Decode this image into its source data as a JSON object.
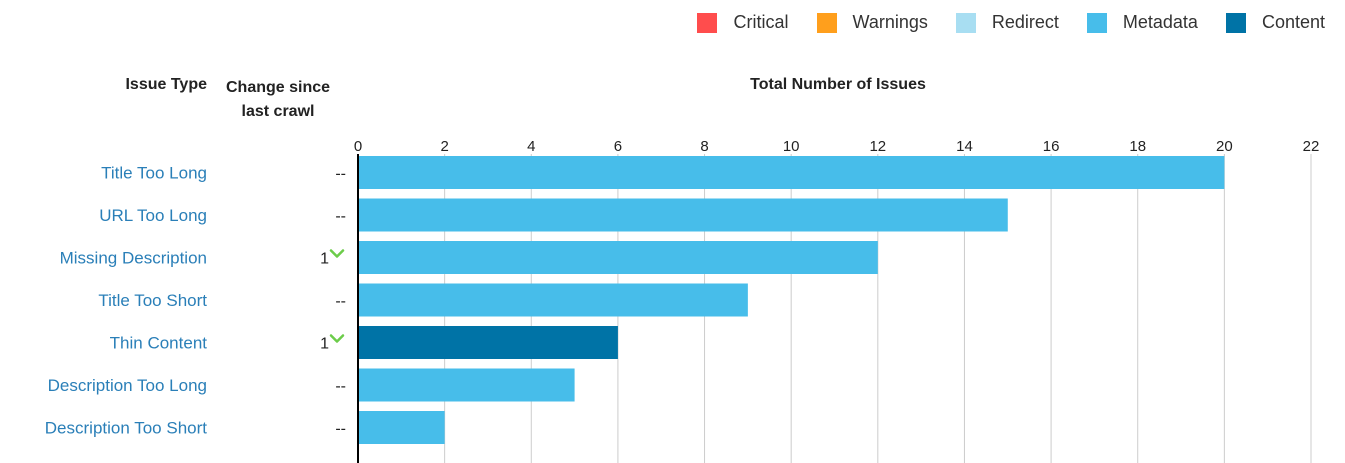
{
  "legend": [
    {
      "label": "Critical",
      "color": "#ff4d4d"
    },
    {
      "label": "Warnings",
      "color": "#ff9f1c"
    },
    {
      "label": "Redirect",
      "color": "#a8def2"
    },
    {
      "label": "Metadata",
      "color": "#47bdea"
    },
    {
      "label": "Content",
      "color": "#0073a6"
    }
  ],
  "headers": {
    "issue_type": "Issue Type",
    "change_line1": "Change since",
    "change_line2": "last crawl",
    "total": "Total Number of Issues"
  },
  "colors": {
    "axis": "#000000",
    "grid": "#cccccc",
    "link": "#2a7fb8",
    "change_up": "#6ccc4a"
  },
  "chart_data": {
    "type": "bar",
    "orientation": "horizontal",
    "title": "Total Number of Issues",
    "xlim": [
      0,
      22
    ],
    "ticks": [
      0,
      2,
      4,
      6,
      8,
      10,
      12,
      14,
      16,
      18,
      20,
      22
    ],
    "grid": true,
    "categories": [
      "Title Too Long",
      "URL Too Long",
      "Missing Description",
      "Title Too Short",
      "Thin Content",
      "Description Too Long",
      "Description Too Short"
    ],
    "values": [
      20,
      15,
      12,
      9,
      6,
      5,
      2
    ],
    "category_type": [
      "Metadata",
      "Metadata",
      "Metadata",
      "Metadata",
      "Content",
      "Metadata",
      "Metadata"
    ],
    "change": [
      "--",
      "--",
      "1",
      "--",
      "1",
      "--",
      "--"
    ],
    "change_direction": [
      "none",
      "none",
      "down-chevron",
      "none",
      "down-chevron",
      "none",
      "none"
    ]
  }
}
